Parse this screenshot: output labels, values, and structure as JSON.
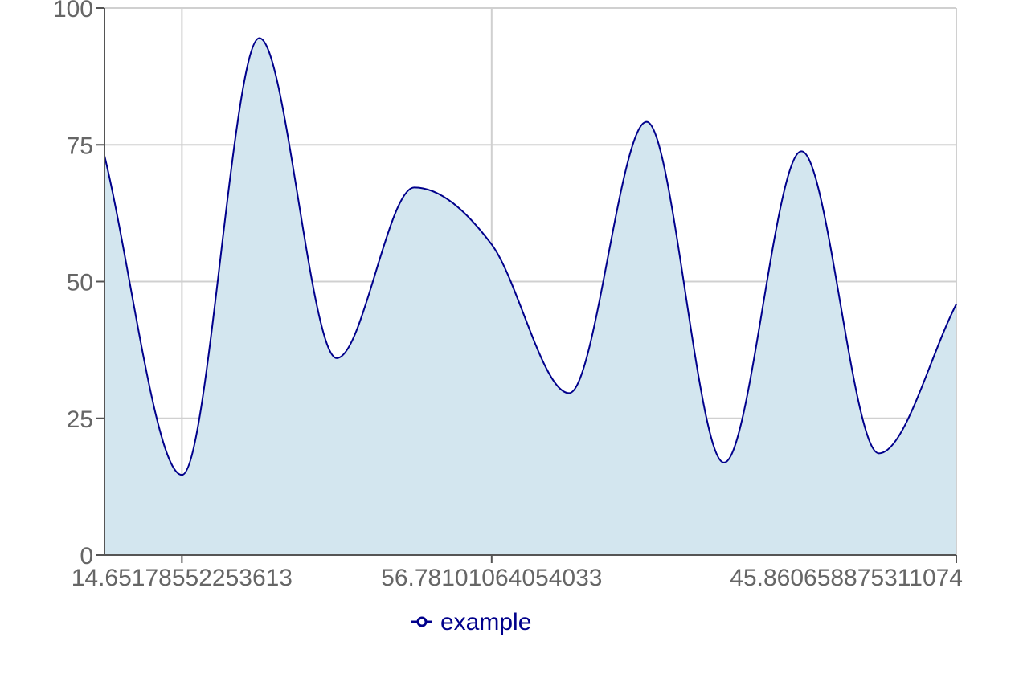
{
  "chart_data": {
    "type": "area",
    "x_tick_labels": [
      "14.65178552253613",
      "56.78101064054033",
      "45.860658875311074"
    ],
    "y_ticks": [
      0,
      25,
      50,
      75,
      100
    ],
    "ylim": [
      0,
      100
    ],
    "grid": true,
    "legend_position": "bottom",
    "series": [
      {
        "name": "example",
        "color": "#00008b",
        "fill": "#d3e6ef",
        "values": [
          73,
          14.65,
          94.5,
          36,
          67.2,
          56.78,
          29.6,
          79.2,
          16.9,
          73.8,
          18.6,
          45.86
        ]
      }
    ]
  }
}
